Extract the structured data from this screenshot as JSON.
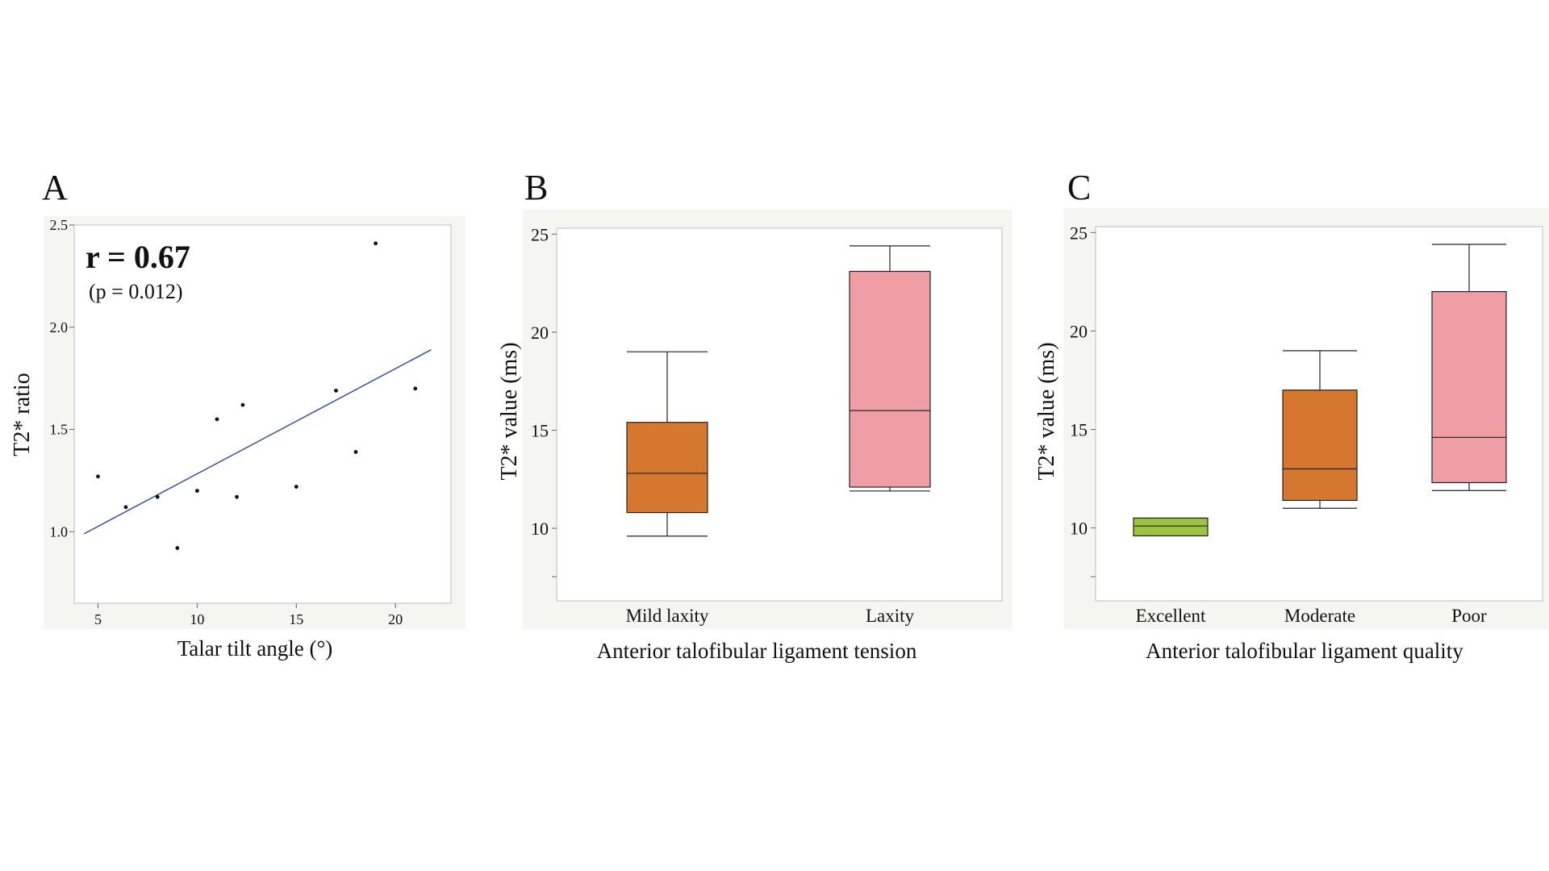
{
  "chart_data": [
    {
      "panel": "A",
      "type": "scatter",
      "annotation_r": "r = 0.67",
      "annotation_p": "(p = 0.012)",
      "xlabel": "Talar tilt angle  (°)",
      "ylabel": "T2* ratio",
      "xlim": [
        3.8,
        22.8
      ],
      "ylim": [
        0.65,
        2.5
      ],
      "xticks": [
        5,
        10,
        15,
        20
      ],
      "xtick_labels": [
        "5",
        "10",
        "15",
        "20"
      ],
      "yticks": [
        1.0,
        1.5,
        2.0,
        2.5
      ],
      "ytick_labels": [
        "1.0",
        "1.5",
        "2.0",
        "2.5"
      ],
      "points": [
        {
          "x": 5.0,
          "y": 1.27
        },
        {
          "x": 6.4,
          "y": 1.12
        },
        {
          "x": 8.0,
          "y": 1.17
        },
        {
          "x": 9.0,
          "y": 0.92
        },
        {
          "x": 10.0,
          "y": 1.2
        },
        {
          "x": 11.0,
          "y": 1.55
        },
        {
          "x": 12.0,
          "y": 1.17
        },
        {
          "x": 12.3,
          "y": 1.62
        },
        {
          "x": 15.0,
          "y": 1.22
        },
        {
          "x": 17.0,
          "y": 1.69
        },
        {
          "x": 18.0,
          "y": 1.39
        },
        {
          "x": 19.0,
          "y": 2.41
        },
        {
          "x": 21.0,
          "y": 1.7
        }
      ],
      "fit_line": {
        "x": [
          4.3,
          21.8
        ],
        "y": [
          0.99,
          1.89
        ]
      },
      "line_color": "#3d5a9e"
    },
    {
      "panel": "B",
      "type": "box",
      "ylabel": "T2* value (ms)",
      "xlabel": "Anterior talofibular ligament tension",
      "ylim": [
        6.3,
        25.3
      ],
      "yticks": [
        10,
        15,
        20,
        25
      ],
      "ytick_labels": [
        "10",
        "15",
        "20",
        "25"
      ],
      "categories": [
        "Mild laxity",
        "Laxity"
      ],
      "boxes": [
        {
          "min": 9.6,
          "q1": 10.8,
          "median": 12.8,
          "q3": 15.4,
          "max": 19.0,
          "color": "#d6772f"
        },
        {
          "min": 11.9,
          "q1": 12.1,
          "median": 16.0,
          "q3": 23.1,
          "max": 24.4,
          "color": "#f09ea6"
        }
      ]
    },
    {
      "panel": "C",
      "type": "box",
      "ylabel": "T2* value (ms)",
      "xlabel": "Anterior talofibular ligament quality",
      "ylim": [
        6.3,
        25.3
      ],
      "yticks": [
        10,
        15,
        20,
        25
      ],
      "ytick_labels": [
        "10",
        "15",
        "20",
        "25"
      ],
      "categories": [
        "Excellent",
        "Moderate",
        "Poor"
      ],
      "boxes": [
        {
          "min": 9.6,
          "q1": 9.6,
          "median": 10.1,
          "q3": 10.5,
          "max": 10.5,
          "color": "#9cc341"
        },
        {
          "min": 11.0,
          "q1": 11.4,
          "median": 13.0,
          "q3": 17.0,
          "max": 19.0,
          "color": "#d6772f"
        },
        {
          "min": 11.9,
          "q1": 12.3,
          "median": 14.6,
          "q3": 22.0,
          "max": 24.4,
          "color": "#f09ea6"
        }
      ]
    }
  ]
}
